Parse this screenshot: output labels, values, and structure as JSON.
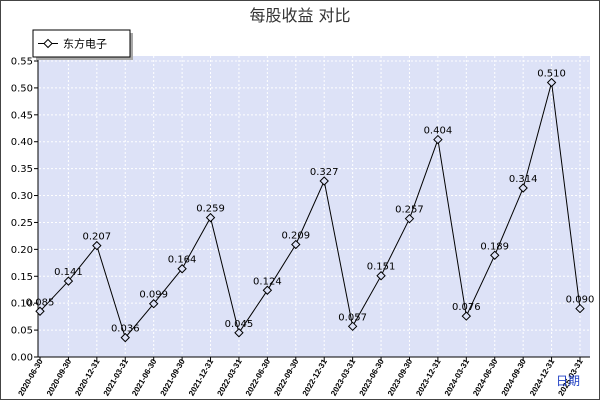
{
  "chart_data": {
    "type": "line",
    "title": "每股收益 对比",
    "xlabel": "日期",
    "ylabel": "",
    "x": [
      "2020-06-30",
      "2020-09-30",
      "2020-12-31",
      "2021-03-31",
      "2021-06-30",
      "2021-09-30",
      "2021-12-31",
      "2022-03-31",
      "2022-06-30",
      "2022-09-30",
      "2022-12-31",
      "2023-03-31",
      "2023-06-30",
      "2023-09-30",
      "2023-12-31",
      "2024-03-31",
      "2024-06-30",
      "2024-09-30",
      "2024-12-31",
      "2025-03-31"
    ],
    "series": [
      {
        "name": "东方电子",
        "color": "#000000",
        "values": [
          0.085,
          0.141,
          0.207,
          0.036,
          0.099,
          0.164,
          0.259,
          0.045,
          0.124,
          0.209,
          0.327,
          0.057,
          0.151,
          0.257,
          0.404,
          0.076,
          0.189,
          0.314,
          0.51,
          0.09
        ]
      }
    ],
    "ylim": [
      0,
      0.55
    ],
    "yticks": [
      "0.00",
      "0.05",
      "0.10",
      "0.15",
      "0.20",
      "0.25",
      "0.30",
      "0.35",
      "0.40",
      "0.45",
      "0.50",
      "0.55"
    ],
    "grid": true,
    "legend": "top-left"
  },
  "colors": {
    "plot_background": "#dde2f7",
    "gridline": "#ffffff",
    "axis_title": "#1f3fc4",
    "frame_border": "#444444"
  }
}
